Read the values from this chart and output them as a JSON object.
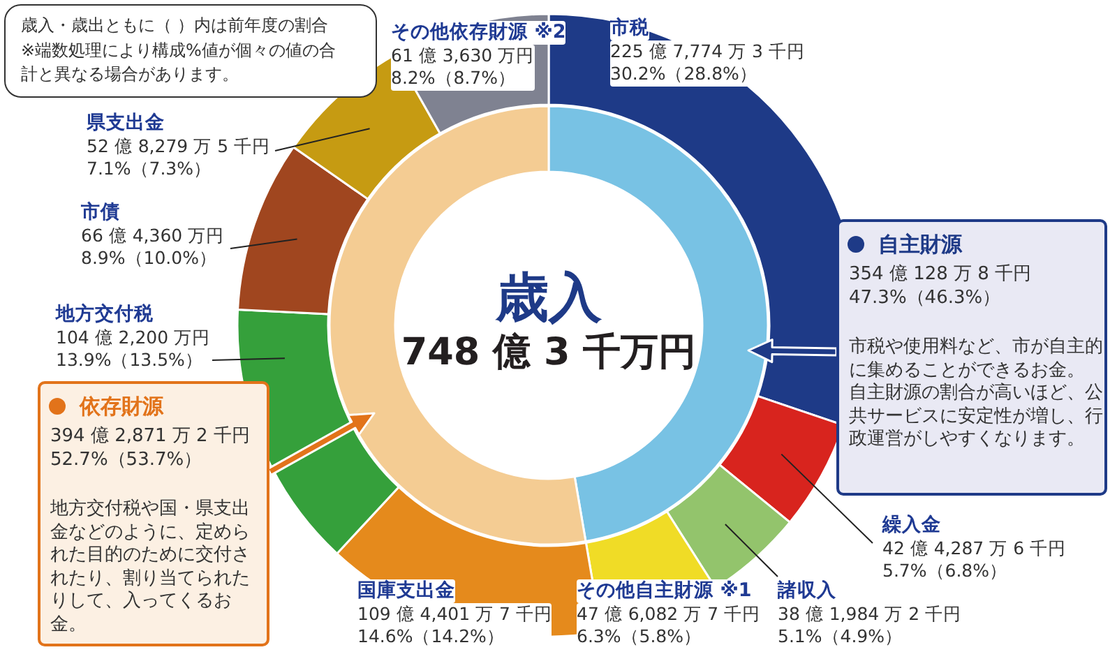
{
  "chart_data": [
    {
      "type": "donut",
      "title": "歳入",
      "subtitle": "748 億 3 千万円",
      "categories": [
        "市税",
        "繰入金",
        "諸収入",
        "その他自主財源 ※1",
        "国庫支出金",
        "地方交付税",
        "市債",
        "県支出金",
        "その他依存財源 ※2"
      ],
      "values": [
        30.2,
        5.7,
        5.1,
        6.3,
        14.6,
        13.9,
        8.9,
        7.1,
        8.2
      ],
      "colors": [
        "#1e3a87",
        "#d8241e",
        "#93c46c",
        "#f0dc26",
        "#e58a1c",
        "#35a03b",
        "#a0461f",
        "#c69b12",
        "#7f8291"
      ],
      "value_labels": [
        "225 億 7,774 万 3 千円\n30.2%（28.8%）",
        "42 億 4,287 万 6 千円\n5.7%（6.8%）",
        "38 億 1,984 万 2 千円\n5.1%（4.9%）",
        "47 億 6,082 万 7 千円\n6.3%（5.8%）",
        "109 億 4,401 万 7 千円\n14.6%（14.2%）",
        "104 億 2,200 万円\n13.9%（13.5%）",
        "66 億 4,360 万円\n8.9%（10.0%）",
        "52 億 8,279 万 5 千円\n7.1%（7.3%）",
        "61 億 3,630 万円\n8.2%（8.7%）"
      ],
      "annotations": [
        "歳入・歳出ともに（ ）内は前年度の割合\n※端数処理により構成%値が個々の値の合計と異なる場合があります。"
      ]
    },
    {
      "type": "donut",
      "categories": [
        "自主財源",
        "依存財源"
      ],
      "values": [
        47.3,
        52.7
      ],
      "colors": [
        "#78c2e4",
        "#f4cc93"
      ],
      "value_labels": [
        "354 億 128 万 8 千円\n47.3%（46.3%）",
        "394 億 2,871 万 2 千円\n52.7%（53.7%）"
      ],
      "annotations": [
        "市税や使用料など、市が自主的に集めることができるお金。",
        "自主財源の割合が高いほど、公共サービスに安定性が増し、行政運営がしやすくなります。",
        "地方交付税や国・県支出金などのように、定められた目的のために交付されたり、割り当てられたりして、入ってくるお金。"
      ]
    }
  ]
}
